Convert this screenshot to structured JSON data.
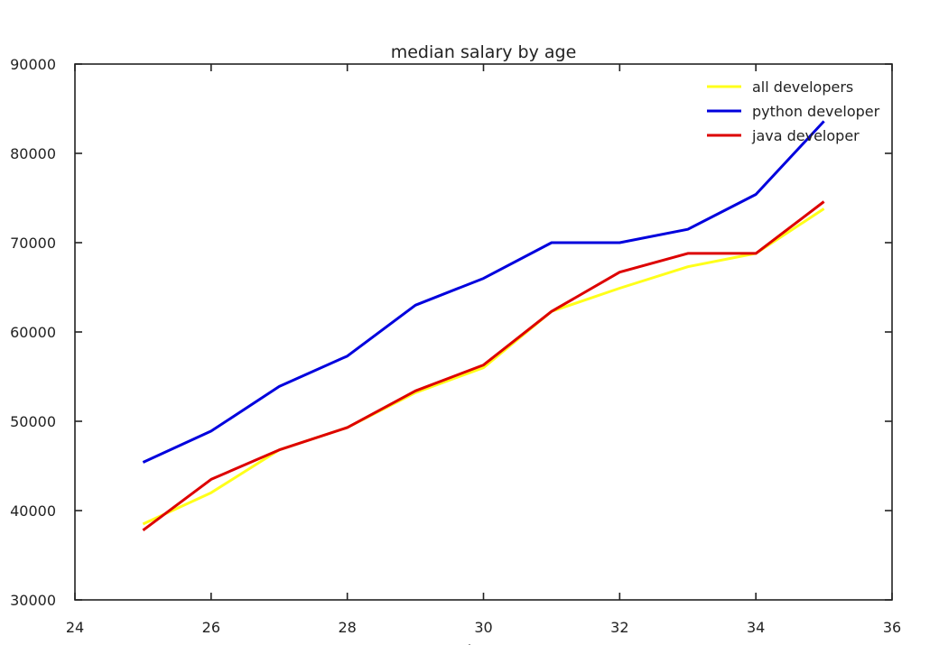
{
  "chart_data": {
    "type": "line",
    "title": "median salary by age",
    "xlabel": "A",
    "ylabel": "",
    "xlim": [
      24,
      36
    ],
    "ylim": [
      30000,
      90000
    ],
    "xticks": [
      24,
      26,
      28,
      30,
      32,
      34,
      36
    ],
    "yticks": [
      30000,
      40000,
      50000,
      60000,
      70000,
      80000,
      90000
    ],
    "xtick_labels": [
      "24",
      "26",
      "28",
      "30",
      "32",
      "34",
      "36"
    ],
    "ytick_labels": [
      "30000",
      "40000",
      "50000",
      "60000",
      "70000",
      "80000",
      "90000"
    ],
    "grid": false,
    "legend_position": "top-right",
    "x": [
      25,
      26,
      27,
      28,
      29,
      30,
      31,
      32,
      33,
      34,
      35
    ],
    "series": [
      {
        "name": "all developers",
        "color": "#ffff1a",
        "values": [
          38500,
          42000,
          46800,
          49300,
          53200,
          56000,
          62300,
          64900,
          67300,
          68800,
          73800
        ]
      },
      {
        "name": "python developer",
        "color": "#0000dd",
        "values": [
          45400,
          48900,
          53900,
          57300,
          63000,
          66000,
          70000,
          70000,
          71500,
          75400,
          83600
        ]
      },
      {
        "name": "java developer",
        "color": "#dd0000",
        "values": [
          37800,
          43500,
          46800,
          49300,
          53400,
          56300,
          62300,
          66700,
          68800,
          68800,
          74600
        ]
      }
    ]
  }
}
